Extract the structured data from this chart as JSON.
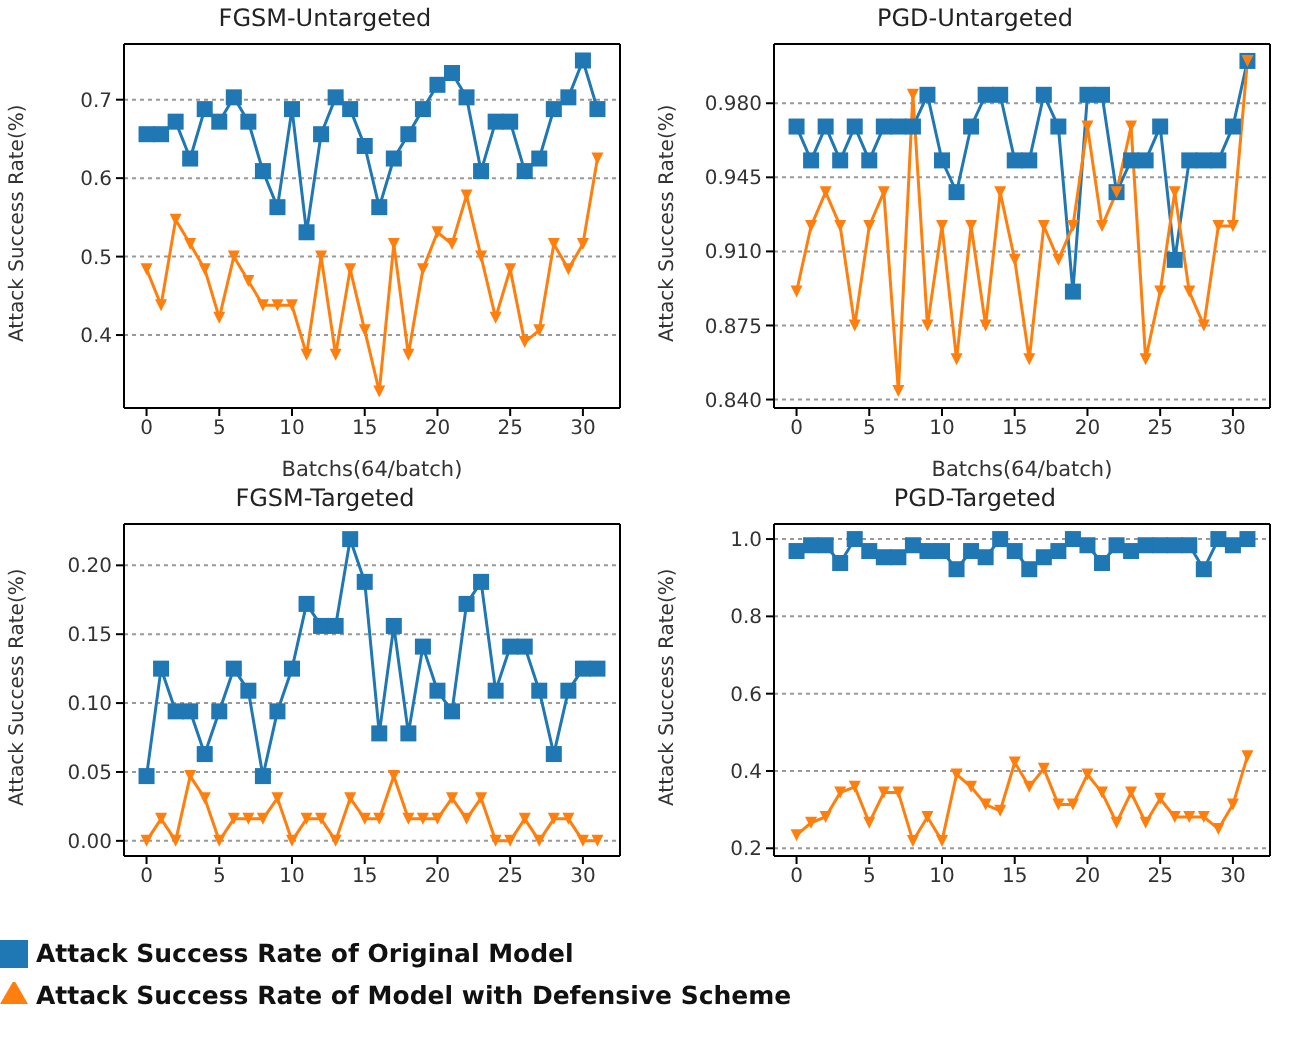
{
  "chart_data": [
    {
      "type": "line",
      "title": "FGSM-Untargeted",
      "xlabel": "Batchs(64/batch)",
      "ylabel": "Attack Success Rate(%)",
      "x": [
        0,
        1,
        2,
        3,
        4,
        5,
        6,
        7,
        8,
        9,
        10,
        11,
        12,
        13,
        14,
        15,
        16,
        17,
        18,
        19,
        20,
        21,
        22,
        23,
        24,
        25,
        26,
        27,
        28,
        29,
        30,
        31
      ],
      "xlim": [
        -1.55,
        32.55
      ],
      "xticks": [
        0,
        5,
        10,
        15,
        20,
        25,
        30
      ],
      "ylim": [
        0.307,
        0.771
      ],
      "yticks": [
        0.4,
        0.5,
        0.6,
        0.7
      ],
      "grid": "y",
      "legend": "bottom",
      "series": [
        {
          "name": "Attack Success Rate of Original Model",
          "color": "#1f77b4",
          "marker": "square",
          "values": [
            0.656,
            0.656,
            0.672,
            0.625,
            0.688,
            0.672,
            0.703,
            0.672,
            0.609,
            0.563,
            0.688,
            0.531,
            0.656,
            0.703,
            0.688,
            0.641,
            0.563,
            0.625,
            0.656,
            0.688,
            0.719,
            0.734,
            0.703,
            0.609,
            0.672,
            0.672,
            0.609,
            0.625,
            0.688,
            0.703,
            0.75,
            0.688
          ]
        },
        {
          "name": "Attack Success Rate of Model with Defensive Scheme",
          "color": "#ff7f0e",
          "marker": "triangle",
          "values": [
            0.484,
            0.438,
            0.547,
            0.516,
            0.484,
            0.422,
            0.5,
            0.469,
            0.438,
            0.438,
            0.438,
            0.375,
            0.5,
            0.375,
            0.484,
            0.406,
            0.328,
            0.516,
            0.375,
            0.484,
            0.531,
            0.516,
            0.578,
            0.5,
            0.422,
            0.484,
            0.391,
            0.406,
            0.516,
            0.484,
            0.516,
            0.625
          ]
        }
      ]
    },
    {
      "type": "line",
      "title": "PGD-Untargeted",
      "xlabel": "Batchs(64/batch)",
      "ylabel": "Attack Success Rate(%)",
      "x": [
        0,
        1,
        2,
        3,
        4,
        5,
        6,
        7,
        8,
        9,
        10,
        11,
        12,
        13,
        14,
        15,
        16,
        17,
        18,
        19,
        20,
        21,
        22,
        23,
        24,
        25,
        26,
        27,
        28,
        29,
        30,
        31
      ],
      "xlim": [
        -1.55,
        32.55
      ],
      "xticks": [
        0,
        5,
        10,
        15,
        20,
        25,
        30
      ],
      "ylim": [
        0.836,
        1.008
      ],
      "yticks": [
        {
          "value": 0.84,
          "label": "0.840"
        },
        0.875,
        {
          "value": 0.91,
          "label": "0.910"
        },
        0.945,
        {
          "value": 0.98,
          "label": "0.980"
        }
      ],
      "grid": "y",
      "series": [
        {
          "color": "#1f77b4",
          "marker": "square",
          "values": [
            0.969,
            0.953,
            0.969,
            0.953,
            0.969,
            0.953,
            0.969,
            0.969,
            0.969,
            0.984,
            0.953,
            0.938,
            0.969,
            0.984,
            0.984,
            0.953,
            0.953,
            0.984,
            0.969,
            0.891,
            0.984,
            0.984,
            0.938,
            0.953,
            0.953,
            0.969,
            0.906,
            0.953,
            0.953,
            0.953,
            0.969,
            1.0
          ]
        },
        {
          "color": "#ff7f0e",
          "marker": "triangle",
          "values": [
            0.891,
            0.922,
            0.938,
            0.922,
            0.875,
            0.922,
            0.938,
            0.844,
            0.984,
            0.875,
            0.922,
            0.859,
            0.922,
            0.875,
            0.938,
            0.906,
            0.859,
            0.922,
            0.906,
            0.922,
            0.969,
            0.922,
            0.938,
            0.969,
            0.859,
            0.891,
            0.938,
            0.891,
            0.875,
            0.922,
            0.922,
            1.0
          ]
        }
      ]
    },
    {
      "type": "line",
      "title": "FGSM-Targeted",
      "ylabel": "Attack Success Rate(%)",
      "x": [
        0,
        1,
        2,
        3,
        4,
        5,
        6,
        7,
        8,
        9,
        10,
        11,
        12,
        13,
        14,
        15,
        16,
        17,
        18,
        19,
        20,
        21,
        22,
        23,
        24,
        25,
        26,
        27,
        28,
        29,
        30,
        31
      ],
      "xlim": [
        -1.55,
        32.55
      ],
      "xticks": [
        0,
        5,
        10,
        15,
        20,
        25,
        30
      ],
      "ylim": [
        -0.011,
        0.23
      ],
      "yticks": [
        {
          "value": 0,
          "label": "0.00"
        },
        {
          "value": 0.05,
          "label": "0.05"
        },
        {
          "value": 0.1,
          "label": "0.10"
        },
        {
          "value": 0.15,
          "label": "0.15"
        },
        {
          "value": 0.2,
          "label": "0.20"
        }
      ],
      "grid": "y",
      "series": [
        {
          "color": "#1f77b4",
          "marker": "square",
          "values": [
            0.047,
            0.125,
            0.094,
            0.094,
            0.063,
            0.094,
            0.125,
            0.109,
            0.047,
            0.094,
            0.125,
            0.172,
            0.156,
            0.156,
            0.219,
            0.188,
            0.078,
            0.156,
            0.078,
            0.141,
            0.109,
            0.094,
            0.172,
            0.188,
            0.109,
            0.141,
            0.141,
            0.109,
            0.063,
            0.109,
            0.125,
            0.125
          ]
        },
        {
          "color": "#ff7f0e",
          "marker": "triangle",
          "values": [
            0,
            0.016,
            0,
            0.047,
            0.031,
            0,
            0.016,
            0.016,
            0.016,
            0.031,
            0,
            0.016,
            0.016,
            0,
            0.031,
            0.016,
            0.016,
            0.047,
            0.016,
            0.016,
            0.016,
            0.031,
            0.016,
            0.031,
            0,
            0,
            0.016,
            0,
            0.016,
            0.016,
            0,
            0
          ]
        }
      ]
    },
    {
      "type": "line",
      "title": "PGD-Targeted",
      "ylabel": "Attack Success Rate(%)",
      "x": [
        0,
        1,
        2,
        3,
        4,
        5,
        6,
        7,
        8,
        9,
        10,
        11,
        12,
        13,
        14,
        15,
        16,
        17,
        18,
        19,
        20,
        21,
        22,
        23,
        24,
        25,
        26,
        27,
        28,
        29,
        30,
        31
      ],
      "xlim": [
        -1.55,
        32.55
      ],
      "xticks": [
        0,
        5,
        10,
        15,
        20,
        25,
        30
      ],
      "ylim": [
        0.18,
        1.039
      ],
      "yticks": [
        0.2,
        0.4,
        0.6,
        0.8,
        {
          "value": 1,
          "label": "1.0"
        }
      ],
      "grid": "y",
      "series": [
        {
          "color": "#1f77b4",
          "marker": "square",
          "values": [
            0.969,
            0.984,
            0.984,
            0.938,
            1.0,
            0.969,
            0.953,
            0.953,
            0.984,
            0.969,
            0.969,
            0.922,
            0.969,
            0.953,
            1.0,
            0.969,
            0.922,
            0.953,
            0.969,
            1.0,
            0.984,
            0.938,
            0.984,
            0.969,
            0.984,
            0.984,
            0.984,
            0.984,
            0.922,
            1.0,
            0.984,
            1.0
          ]
        },
        {
          "color": "#ff7f0e",
          "marker": "triangle",
          "values": [
            0.234,
            0.266,
            0.281,
            0.344,
            0.359,
            0.266,
            0.344,
            0.344,
            0.219,
            0.281,
            0.219,
            0.391,
            0.359,
            0.313,
            0.297,
            0.422,
            0.359,
            0.406,
            0.313,
            0.313,
            0.391,
            0.344,
            0.266,
            0.344,
            0.266,
            0.328,
            0.281,
            0.281,
            0.281,
            0.25,
            0.313,
            0.438
          ]
        }
      ]
    }
  ]
}
